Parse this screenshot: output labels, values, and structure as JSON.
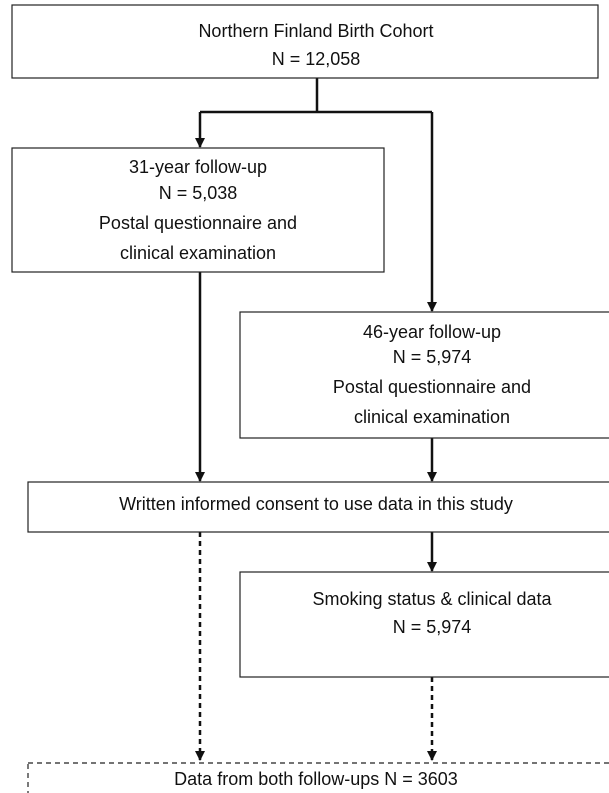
{
  "nodes": [
    {
      "lines": [
        "Northern Finland Birth Cohort",
        "N = 12,058"
      ]
    },
    {
      "lines": [
        "31-year follow-up",
        "N = 5,038",
        "Postal questionnaire and",
        "clinical examination"
      ]
    },
    {
      "lines": [
        "46-year follow-up",
        "N = 5,974",
        "Postal questionnaire and",
        "clinical examination"
      ]
    },
    {
      "lines": [
        "Written informed consent to use data in this study"
      ]
    },
    {
      "lines": [
        "Smoking status & clinical data",
        "N = 5,974"
      ]
    },
    {
      "lines": [
        "Data from both follow-ups N = 3603"
      ]
    }
  ]
}
